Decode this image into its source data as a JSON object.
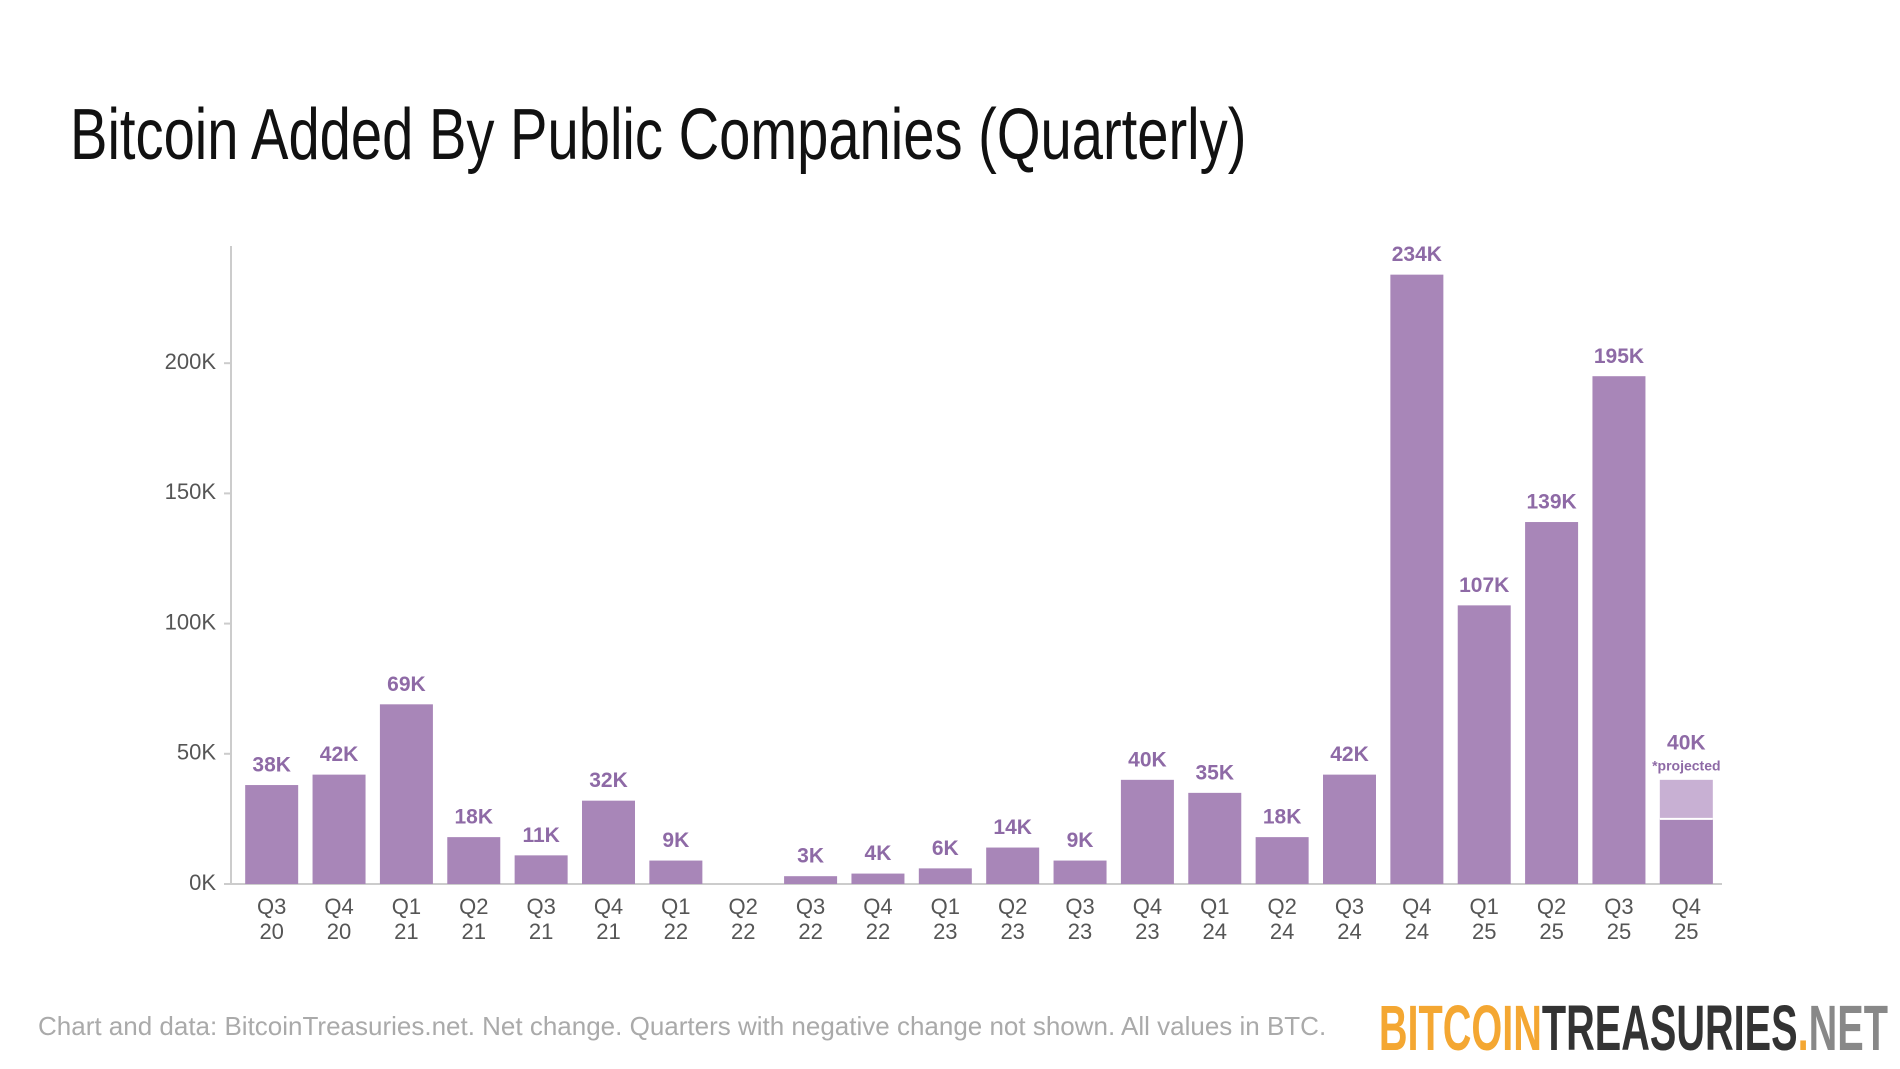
{
  "chart_data": {
    "type": "bar",
    "title": "Bitcoin Added By Public Companies (Quarterly)",
    "categories": [
      "Q3 20",
      "Q4 20",
      "Q1 21",
      "Q2 21",
      "Q3 21",
      "Q4 21",
      "Q1 22",
      "Q2 22",
      "Q3 22",
      "Q4 22",
      "Q1 23",
      "Q2 23",
      "Q3 23",
      "Q4 23",
      "Q1 24",
      "Q2 24",
      "Q3 24",
      "Q4 24",
      "Q1 25",
      "Q2 25",
      "Q3 25",
      "Q4 25"
    ],
    "values": [
      38000,
      42000,
      69000,
      18000,
      11000,
      32000,
      9000,
      null,
      3000,
      4000,
      6000,
      14000,
      9000,
      40000,
      35000,
      18000,
      42000,
      234000,
      107000,
      139000,
      195000,
      40000
    ],
    "value_labels": [
      "38K",
      "42K",
      "69K",
      "18K",
      "11K",
      "32K",
      "9K",
      null,
      "3K",
      "4K",
      "6K",
      "14K",
      "9K",
      "40K",
      "35K",
      "18K",
      "42K",
      "234K",
      "107K",
      "139K",
      "195K",
      "40K"
    ],
    "color": "#a886b8",
    "projection": {
      "index": 21,
      "to_date": 25000,
      "note": "*projected",
      "color": "#c8b0d3"
    },
    "ylim": [
      0,
      245000
    ],
    "yticks": [
      {
        "value": 0,
        "label": "0K"
      },
      {
        "value": 50000,
        "label": "50K"
      },
      {
        "value": 100000,
        "label": "100K"
      },
      {
        "value": 150000,
        "label": "150K"
      },
      {
        "value": 200000,
        "label": "200K"
      }
    ],
    "footnote": "Chart and data: BitcoinTreasuries.net. Net change. Quarters with negative change not shown. All values in BTC.",
    "logo": [
      "BITCOIN",
      "TREASURIES",
      ".",
      "NET"
    ]
  }
}
